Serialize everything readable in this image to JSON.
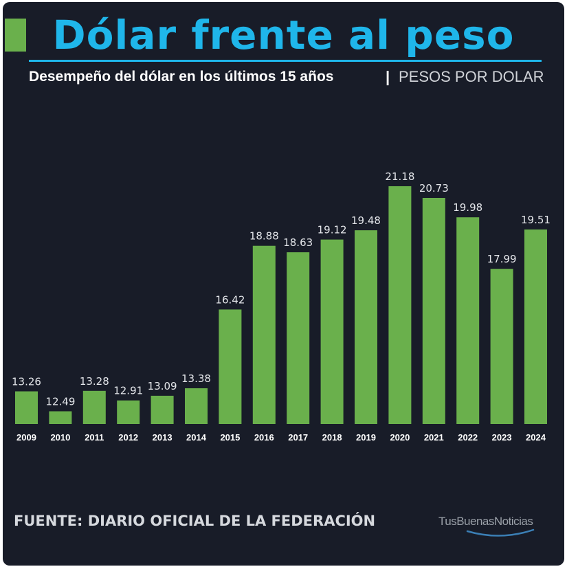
{
  "header": {
    "title": "Dólar frente al peso",
    "subtitle": "Desempeño del dólar en los últimos 15 años",
    "separator": "|",
    "unit": "PESOS POR DOLAR"
  },
  "footer": {
    "source": "FUENTE: DIARIO OFICIAL DE LA FEDERACIÓN",
    "logo_text": "TusBuenasNoticias"
  },
  "colors": {
    "background": "#181c28",
    "bar": "#6ab04c",
    "title": "#1fb6ea",
    "text": "#ffffff"
  },
  "chart_data": {
    "type": "bar",
    "title": "Dólar frente al peso",
    "subtitle": "Desempeño del dólar en los últimos 15 años",
    "ylabel": "PESOS POR DOLAR",
    "categories": [
      "2009",
      "2010",
      "2011",
      "2012",
      "2013",
      "2014",
      "2015",
      "2016",
      "2017",
      "2018",
      "2019",
      "2020",
      "2021",
      "2022",
      "2023",
      "2024"
    ],
    "values": [
      13.26,
      12.49,
      13.28,
      12.91,
      13.09,
      13.38,
      16.42,
      18.88,
      18.63,
      19.12,
      19.48,
      21.18,
      20.73,
      19.98,
      17.99,
      19.51
    ],
    "value_labels": [
      "13.26",
      "12.49",
      "13.28",
      "12.91",
      "13.09",
      "13.38",
      "16.42",
      "18.88",
      "18.63",
      "19.12",
      "19.48",
      "21.18",
      "20.73",
      "19.98",
      "17.99",
      "19.51"
    ],
    "ylim": [
      12.0,
      21.18
    ],
    "grid": false,
    "legend": "none"
  }
}
